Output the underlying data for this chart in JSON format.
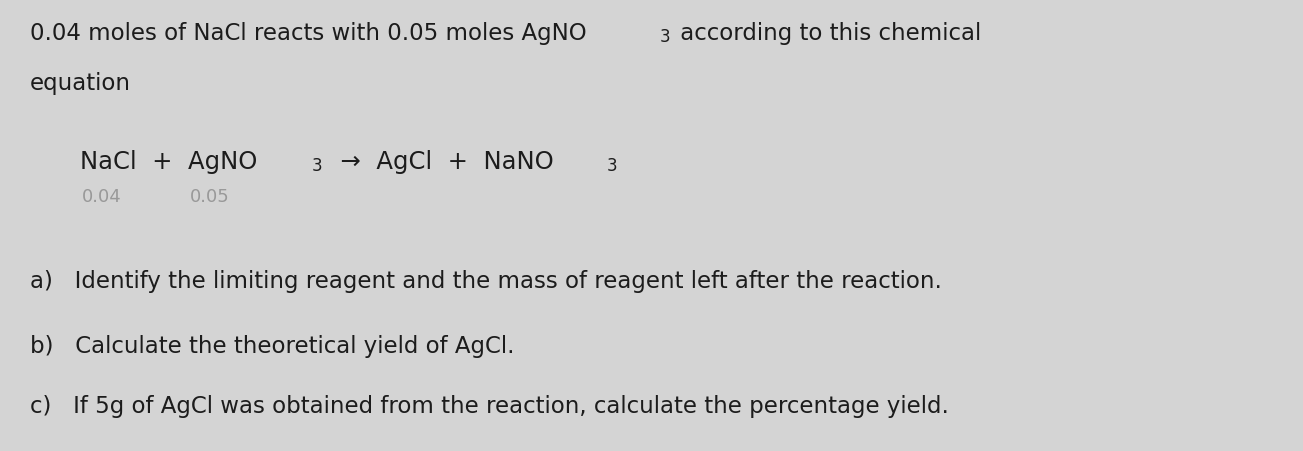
{
  "background_color": "#d4d4d4",
  "figsize": [
    13.03,
    4.51
  ],
  "dpi": 100,
  "text_color": "#1c1c1c",
  "annotation_color": "#999999",
  "main_fontsize": 16.5,
  "small_fontsize": 12,
  "question_fontsize": 16.5,
  "intro_line1_main": "0.04 moles of NaCl reacts with 0.05 moles AgNO",
  "intro_line1_sub": "3",
  "intro_line1_tail": " according to this chemical",
  "intro_line2": "equation",
  "eq_nacl": "NaCl  +  AgNO",
  "eq_sub3a": "3",
  "eq_arrow": "  →  AgCl  +  NaNO",
  "eq_sub3b": "3",
  "ann1": "0.04",
  "ann2": "0.05",
  "qa": "a)   Identify the limiting reagent and the mass of reagent left after the reaction.",
  "qb": "b)   Calculate the theoretical yield of AgCl.",
  "qc": "c)   If 5g of AgCl was obtained from the reaction, calculate the percentage yield."
}
